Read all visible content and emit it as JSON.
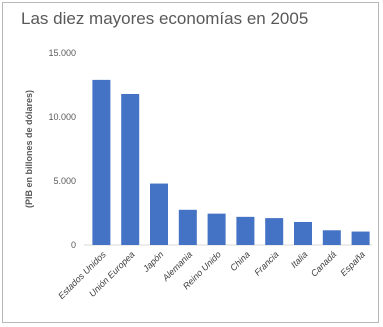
{
  "chart_data": {
    "type": "bar",
    "title": "Las diez mayores economías en 2005",
    "ylabel": "(PIB en billones de dólares)",
    "xlabel": "",
    "ylim": [
      0,
      15000
    ],
    "yticks": [
      0,
      5000,
      10000,
      15000
    ],
    "ytick_labels": [
      "0",
      "5.000",
      "10.000",
      "15.000"
    ],
    "grid": false,
    "categories": [
      "Estados Unidos",
      "Unión Europea",
      "Japón",
      "Alemania",
      "Reino Unido",
      "China",
      "Francia",
      "Italia",
      "Canadá",
      "España"
    ],
    "values": [
      12900,
      11800,
      4800,
      2750,
      2450,
      2200,
      2100,
      1800,
      1150,
      1050
    ],
    "bar_color": "#4472c4"
  }
}
